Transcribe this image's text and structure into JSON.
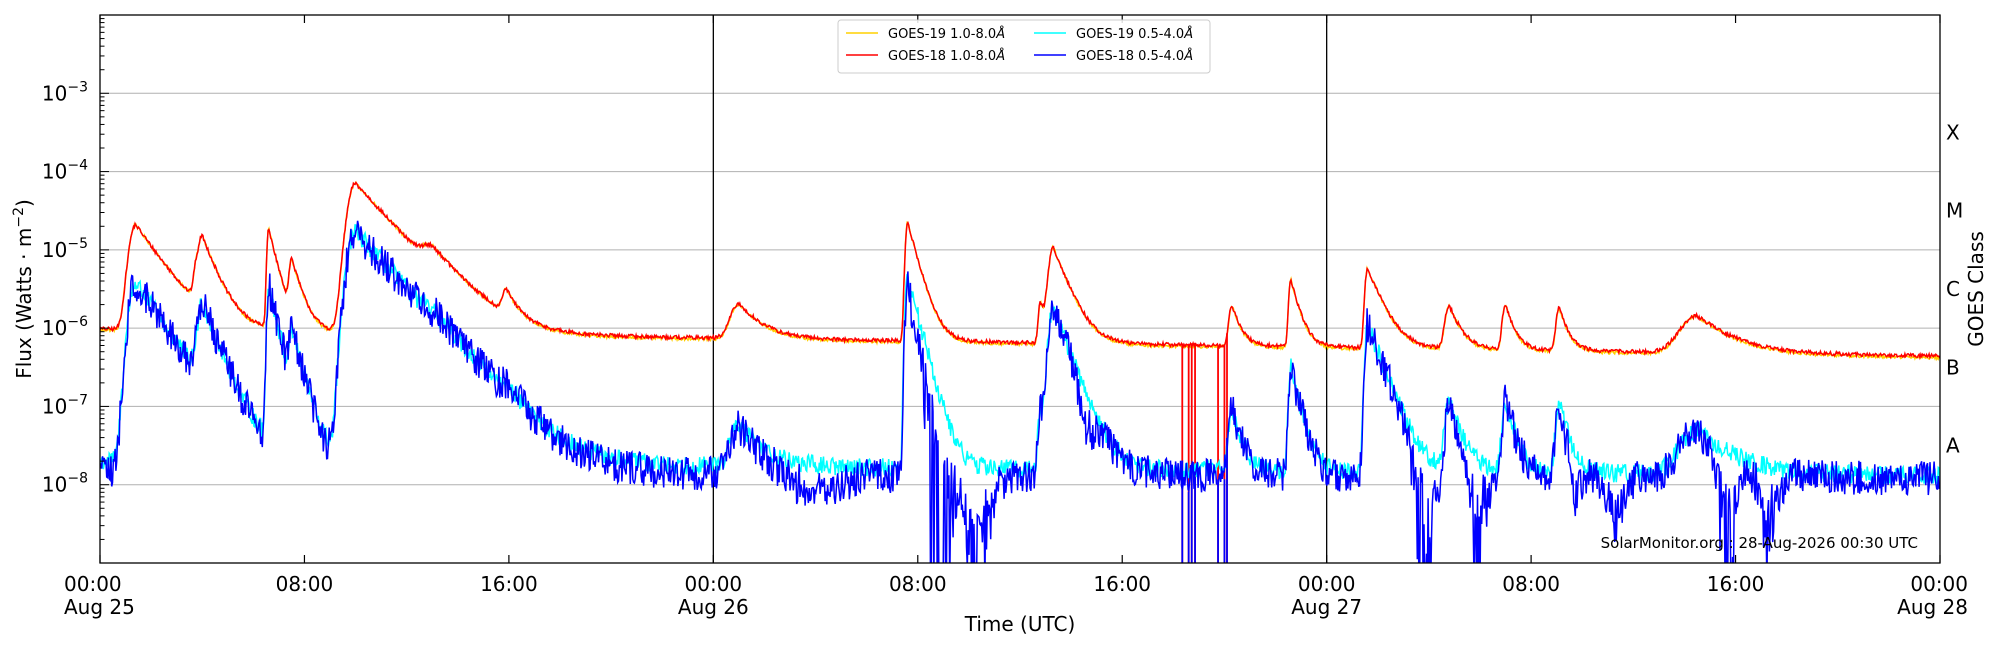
{
  "chart_data": {
    "type": "line",
    "xlabel": "Time (UTC)",
    "ylabel": "Flux (Watts · m",
    "ylabel_exp": "−2",
    "ylabel_close": ")",
    "y2label": "GOES Class",
    "yscale": "log",
    "x_range_hours": [
      0,
      72
    ],
    "ylim": [
      1e-09,
      0.01
    ],
    "grid": "horizontal",
    "legend_placement": "top-center",
    "credit": "SolarMonitor.org : 28-Aug-2026 00:30 UTC",
    "xticks": [
      {
        "hour": 0,
        "time": "00:00",
        "date": "Aug 25"
      },
      {
        "hour": 8,
        "time": "08:00",
        "date": ""
      },
      {
        "hour": 16,
        "time": "16:00",
        "date": ""
      },
      {
        "hour": 24,
        "time": "00:00",
        "date": "Aug 26"
      },
      {
        "hour": 32,
        "time": "08:00",
        "date": ""
      },
      {
        "hour": 40,
        "time": "16:00",
        "date": ""
      },
      {
        "hour": 48,
        "time": "00:00",
        "date": "Aug 27"
      },
      {
        "hour": 56,
        "time": "08:00",
        "date": ""
      },
      {
        "hour": 64,
        "time": "16:00",
        "date": ""
      },
      {
        "hour": 72,
        "time": "00:00",
        "date": "Aug 28"
      }
    ],
    "yticks": [
      {
        "exp": -8,
        "base": "10",
        "sup": "−8"
      },
      {
        "exp": -7,
        "base": "10",
        "sup": "−7"
      },
      {
        "exp": -6,
        "base": "10",
        "sup": "−6"
      },
      {
        "exp": -5,
        "base": "10",
        "sup": "−5"
      },
      {
        "exp": -4,
        "base": "10",
        "sup": "−4"
      },
      {
        "exp": -3,
        "base": "10",
        "sup": "−3"
      }
    ],
    "goes_classes": [
      {
        "label": "A",
        "exp": -7.5
      },
      {
        "label": "B",
        "exp": -6.5
      },
      {
        "label": "C",
        "exp": -5.5
      },
      {
        "label": "M",
        "exp": -4.5
      },
      {
        "label": "X",
        "exp": -3.5
      }
    ],
    "day_boundaries_hours": [
      24,
      48
    ],
    "series": [
      {
        "name": "GOES-19 1.0-8.0",
        "unit": "Å",
        "color": "#ffd000",
        "background": 9.5e-07,
        "decay_to": 4.2e-07,
        "noise": 0.02,
        "flares": [
          {
            "t": 1.4,
            "peak": 2e-05,
            "rise": 0.3,
            "decay": 0.9
          },
          {
            "t": 3.8,
            "peak": 5e-06,
            "rise": 0.15,
            "decay": 0.35
          },
          {
            "t": 4.0,
            "peak": 1.05e-05,
            "rise": 0.15,
            "decay": 0.5
          },
          {
            "t": 6.6,
            "peak": 1.8e-05,
            "rise": 0.08,
            "decay": 0.3
          },
          {
            "t": 7.5,
            "peak": 6e-06,
            "rise": 0.12,
            "decay": 0.35
          },
          {
            "t": 10.0,
            "peak": 7e-05,
            "rise": 0.35,
            "decay": 1.2
          },
          {
            "t": 13.0,
            "peak": 4.8e-06,
            "rise": 0.5,
            "decay": 1.0
          },
          {
            "t": 15.9,
            "peak": 1.6e-06,
            "rise": 0.2,
            "decay": 0.4
          },
          {
            "t": 25.0,
            "peak": 1.3e-06,
            "rise": 0.4,
            "decay": 0.8
          },
          {
            "t": 31.6,
            "peak": 2.2e-05,
            "rise": 0.1,
            "decay": 0.35
          },
          {
            "t": 36.8,
            "peak": 1.5e-06,
            "rise": 0.1,
            "decay": 0.3
          },
          {
            "t": 37.3,
            "peak": 1e-05,
            "rise": 0.2,
            "decay": 0.5
          },
          {
            "t": 44.3,
            "peak": 1.35e-06,
            "rise": 0.15,
            "decay": 0.3
          },
          {
            "t": 46.6,
            "peak": 3.6e-06,
            "rise": 0.1,
            "decay": 0.3
          },
          {
            "t": 49.6,
            "peak": 5.3e-06,
            "rise": 0.12,
            "decay": 0.5
          },
          {
            "t": 52.8,
            "peak": 1.4e-06,
            "rise": 0.2,
            "decay": 0.4
          },
          {
            "t": 55.0,
            "peak": 1.5e-06,
            "rise": 0.15,
            "decay": 0.3
          },
          {
            "t": 57.1,
            "peak": 1.3e-06,
            "rise": 0.15,
            "decay": 0.3
          },
          {
            "t": 62.5,
            "peak": 9.5e-07,
            "rise": 0.8,
            "decay": 1.2
          }
        ]
      },
      {
        "name": "GOES-18 1.0-8.0",
        "unit": "Å",
        "color": "#ff0000",
        "background": 9.8e-07,
        "decay_to": 4.4e-07,
        "noise": 0.025,
        "dropouts": [
          42.35,
          42.6,
          42.72,
          42.85,
          43.75,
          44.0,
          44.1
        ],
        "flares": [
          {
            "t": 1.4,
            "peak": 2e-05,
            "rise": 0.3,
            "decay": 0.9
          },
          {
            "t": 3.8,
            "peak": 5e-06,
            "rise": 0.15,
            "decay": 0.35
          },
          {
            "t": 4.0,
            "peak": 1.05e-05,
            "rise": 0.15,
            "decay": 0.5
          },
          {
            "t": 6.6,
            "peak": 1.8e-05,
            "rise": 0.08,
            "decay": 0.3
          },
          {
            "t": 7.5,
            "peak": 6e-06,
            "rise": 0.12,
            "decay": 0.35
          },
          {
            "t": 10.0,
            "peak": 7e-05,
            "rise": 0.35,
            "decay": 1.2
          },
          {
            "t": 13.0,
            "peak": 4.8e-06,
            "rise": 0.5,
            "decay": 1.0
          },
          {
            "t": 15.9,
            "peak": 1.6e-06,
            "rise": 0.2,
            "decay": 0.4
          },
          {
            "t": 25.0,
            "peak": 1.3e-06,
            "rise": 0.4,
            "decay": 0.8
          },
          {
            "t": 31.6,
            "peak": 2.2e-05,
            "rise": 0.1,
            "decay": 0.35
          },
          {
            "t": 36.8,
            "peak": 1.5e-06,
            "rise": 0.1,
            "decay": 0.3
          },
          {
            "t": 37.3,
            "peak": 1e-05,
            "rise": 0.2,
            "decay": 0.5
          },
          {
            "t": 44.3,
            "peak": 1.35e-06,
            "rise": 0.15,
            "decay": 0.3
          },
          {
            "t": 46.6,
            "peak": 3.6e-06,
            "rise": 0.1,
            "decay": 0.3
          },
          {
            "t": 49.6,
            "peak": 5.3e-06,
            "rise": 0.12,
            "decay": 0.5
          },
          {
            "t": 52.8,
            "peak": 1.4e-06,
            "rise": 0.2,
            "decay": 0.4
          },
          {
            "t": 55.0,
            "peak": 1.5e-06,
            "rise": 0.15,
            "decay": 0.3
          },
          {
            "t": 57.1,
            "peak": 1.3e-06,
            "rise": 0.15,
            "decay": 0.3
          },
          {
            "t": 62.5,
            "peak": 9.5e-07,
            "rise": 0.8,
            "decay": 1.2
          }
        ]
      },
      {
        "name": "GOES-19 0.5-4.0",
        "unit": "Å",
        "color": "#00ffff",
        "background": 2e-08,
        "decay_to": 1.3e-08,
        "noise": 0.12,
        "flares": [
          {
            "t": 1.4,
            "peak": 3.8e-06,
            "rise": 0.3,
            "decay": 0.9
          },
          {
            "t": 3.8,
            "peak": 4e-07,
            "rise": 0.15,
            "decay": 0.35
          },
          {
            "t": 4.0,
            "peak": 1.7e-06,
            "rise": 0.15,
            "decay": 0.5
          },
          {
            "t": 6.6,
            "peak": 3.5e-06,
            "rise": 0.08,
            "decay": 0.3
          },
          {
            "t": 7.5,
            "peak": 8.5e-07,
            "rise": 0.12,
            "decay": 0.35
          },
          {
            "t": 10.0,
            "peak": 1.7e-05,
            "rise": 0.35,
            "decay": 1.2
          },
          {
            "t": 13.0,
            "peak": 2.8e-07,
            "rise": 0.5,
            "decay": 1.0
          },
          {
            "t": 15.9,
            "peak": 5e-08,
            "rise": 0.2,
            "decay": 0.4
          },
          {
            "t": 25.0,
            "peak": 4e-08,
            "rise": 0.4,
            "decay": 0.8
          },
          {
            "t": 31.6,
            "peak": 4.5e-06,
            "rise": 0.1,
            "decay": 0.35
          },
          {
            "t": 36.8,
            "peak": 8e-08,
            "rise": 0.1,
            "decay": 0.3
          },
          {
            "t": 37.3,
            "peak": 1.8e-06,
            "rise": 0.2,
            "decay": 0.5
          },
          {
            "t": 44.3,
            "peak": 8e-08,
            "rise": 0.15,
            "decay": 0.3
          },
          {
            "t": 46.6,
            "peak": 3e-07,
            "rise": 0.1,
            "decay": 0.3
          },
          {
            "t": 49.6,
            "peak": 1.1e-06,
            "rise": 0.12,
            "decay": 0.5
          },
          {
            "t": 52.8,
            "peak": 1e-07,
            "rise": 0.2,
            "decay": 0.4
          },
          {
            "t": 55.0,
            "peak": 1.1e-07,
            "rise": 0.15,
            "decay": 0.3
          },
          {
            "t": 57.1,
            "peak": 1e-07,
            "rise": 0.15,
            "decay": 0.3
          },
          {
            "t": 62.5,
            "peak": 3.5e-08,
            "rise": 0.8,
            "decay": 1.2
          }
        ]
      },
      {
        "name": "GOES-18 0.5-4.0",
        "unit": "Å",
        "color": "#0000ff",
        "background": 1.5e-08,
        "decay_to": 1.2e-08,
        "noise": 0.22,
        "dropouts": [
          42.35,
          42.6,
          42.72,
          42.85,
          43.75,
          44.0,
          44.1
        ],
        "dips": [
          {
            "t": 28.0,
            "depth": 0.45,
            "width": 1.5
          },
          {
            "t": 32.9,
            "depth": 0.95,
            "width": 1.1
          },
          {
            "t": 34.3,
            "depth": 0.9,
            "width": 0.8
          },
          {
            "t": 38.6,
            "depth": 0.55,
            "width": 0.5
          },
          {
            "t": 51.8,
            "depth": 0.9,
            "width": 0.7
          },
          {
            "t": 53.9,
            "depth": 0.85,
            "width": 0.6
          },
          {
            "t": 57.7,
            "depth": 0.6,
            "width": 0.4
          },
          {
            "t": 59.3,
            "depth": 0.7,
            "width": 0.5
          },
          {
            "t": 63.7,
            "depth": 0.95,
            "width": 0.6
          },
          {
            "t": 65.3,
            "depth": 0.8,
            "width": 0.6
          }
        ],
        "flares": [
          {
            "t": 1.4,
            "peak": 3.8e-06,
            "rise": 0.3,
            "decay": 0.9
          },
          {
            "t": 3.8,
            "peak": 4e-07,
            "rise": 0.15,
            "decay": 0.35
          },
          {
            "t": 4.0,
            "peak": 1.7e-06,
            "rise": 0.15,
            "decay": 0.5
          },
          {
            "t": 6.6,
            "peak": 3.5e-06,
            "rise": 0.08,
            "decay": 0.3
          },
          {
            "t": 7.5,
            "peak": 8.5e-07,
            "rise": 0.12,
            "decay": 0.35
          },
          {
            "t": 10.0,
            "peak": 1.7e-05,
            "rise": 0.35,
            "decay": 1.2
          },
          {
            "t": 13.0,
            "peak": 2.8e-07,
            "rise": 0.5,
            "decay": 1.0
          },
          {
            "t": 15.9,
            "peak": 5e-08,
            "rise": 0.2,
            "decay": 0.4
          },
          {
            "t": 25.0,
            "peak": 4e-08,
            "rise": 0.4,
            "decay": 0.8
          },
          {
            "t": 31.6,
            "peak": 4.5e-06,
            "rise": 0.1,
            "decay": 0.35
          },
          {
            "t": 36.8,
            "peak": 8e-08,
            "rise": 0.1,
            "decay": 0.3
          },
          {
            "t": 37.3,
            "peak": 1.8e-06,
            "rise": 0.2,
            "decay": 0.5
          },
          {
            "t": 44.3,
            "peak": 8e-08,
            "rise": 0.15,
            "decay": 0.3
          },
          {
            "t": 46.6,
            "peak": 3e-07,
            "rise": 0.1,
            "decay": 0.3
          },
          {
            "t": 49.6,
            "peak": 1.1e-06,
            "rise": 0.12,
            "decay": 0.5
          },
          {
            "t": 52.8,
            "peak": 1e-07,
            "rise": 0.2,
            "decay": 0.4
          },
          {
            "t": 55.0,
            "peak": 1.1e-07,
            "rise": 0.15,
            "decay": 0.3
          },
          {
            "t": 57.1,
            "peak": 1e-07,
            "rise": 0.15,
            "decay": 0.3
          },
          {
            "t": 62.5,
            "peak": 3.5e-08,
            "rise": 0.8,
            "decay": 1.2
          }
        ]
      }
    ]
  }
}
